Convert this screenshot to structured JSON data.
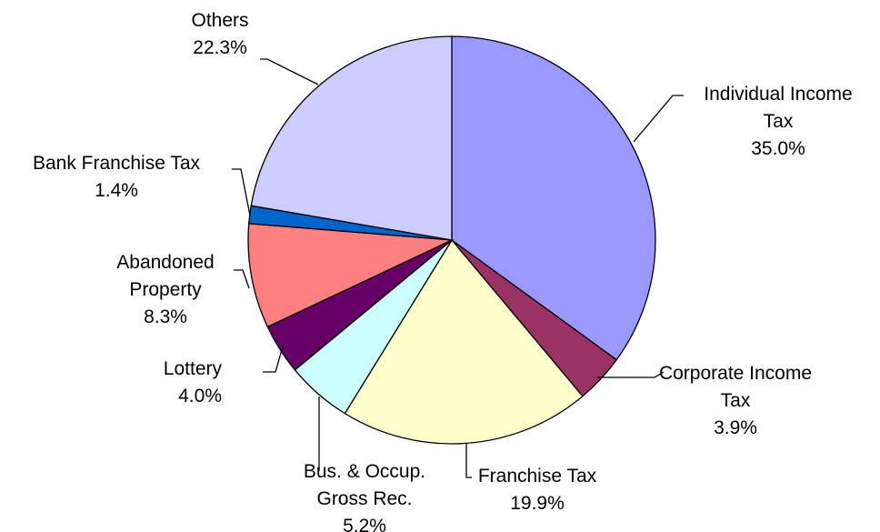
{
  "chart_data": {
    "type": "pie",
    "title": "",
    "start": "top, clockwise",
    "slices": [
      {
        "label": [
          "Individual Income",
          "Tax"
        ],
        "pct_label": "35.0%",
        "value": 35.0,
        "color": "#9999ff"
      },
      {
        "label": [
          "Corporate Income",
          "Tax"
        ],
        "pct_label": "3.9%",
        "value": 3.9,
        "color": "#993366"
      },
      {
        "label": [
          "Franchise Tax"
        ],
        "pct_label": "19.9%",
        "value": 19.9,
        "color": "#ffffcc"
      },
      {
        "label": [
          "Bus. & Occup.",
          "Gross Rec."
        ],
        "pct_label": "5.2%",
        "value": 5.2,
        "color": "#ccffff"
      },
      {
        "label": [
          "Lottery"
        ],
        "pct_label": "4.0%",
        "value": 4.0,
        "color": "#660066"
      },
      {
        "label": [
          "Abandoned",
          "Property"
        ],
        "pct_label": "8.3%",
        "value": 8.3,
        "color": "#ff8080"
      },
      {
        "label": [
          "Bank Franchise Tax"
        ],
        "pct_label": "1.4%",
        "value": 1.4,
        "color": "#0066cc"
      },
      {
        "label": [
          "Others"
        ],
        "pct_label": "22.3%",
        "value": 22.3,
        "color": "#ccccff"
      }
    ]
  }
}
